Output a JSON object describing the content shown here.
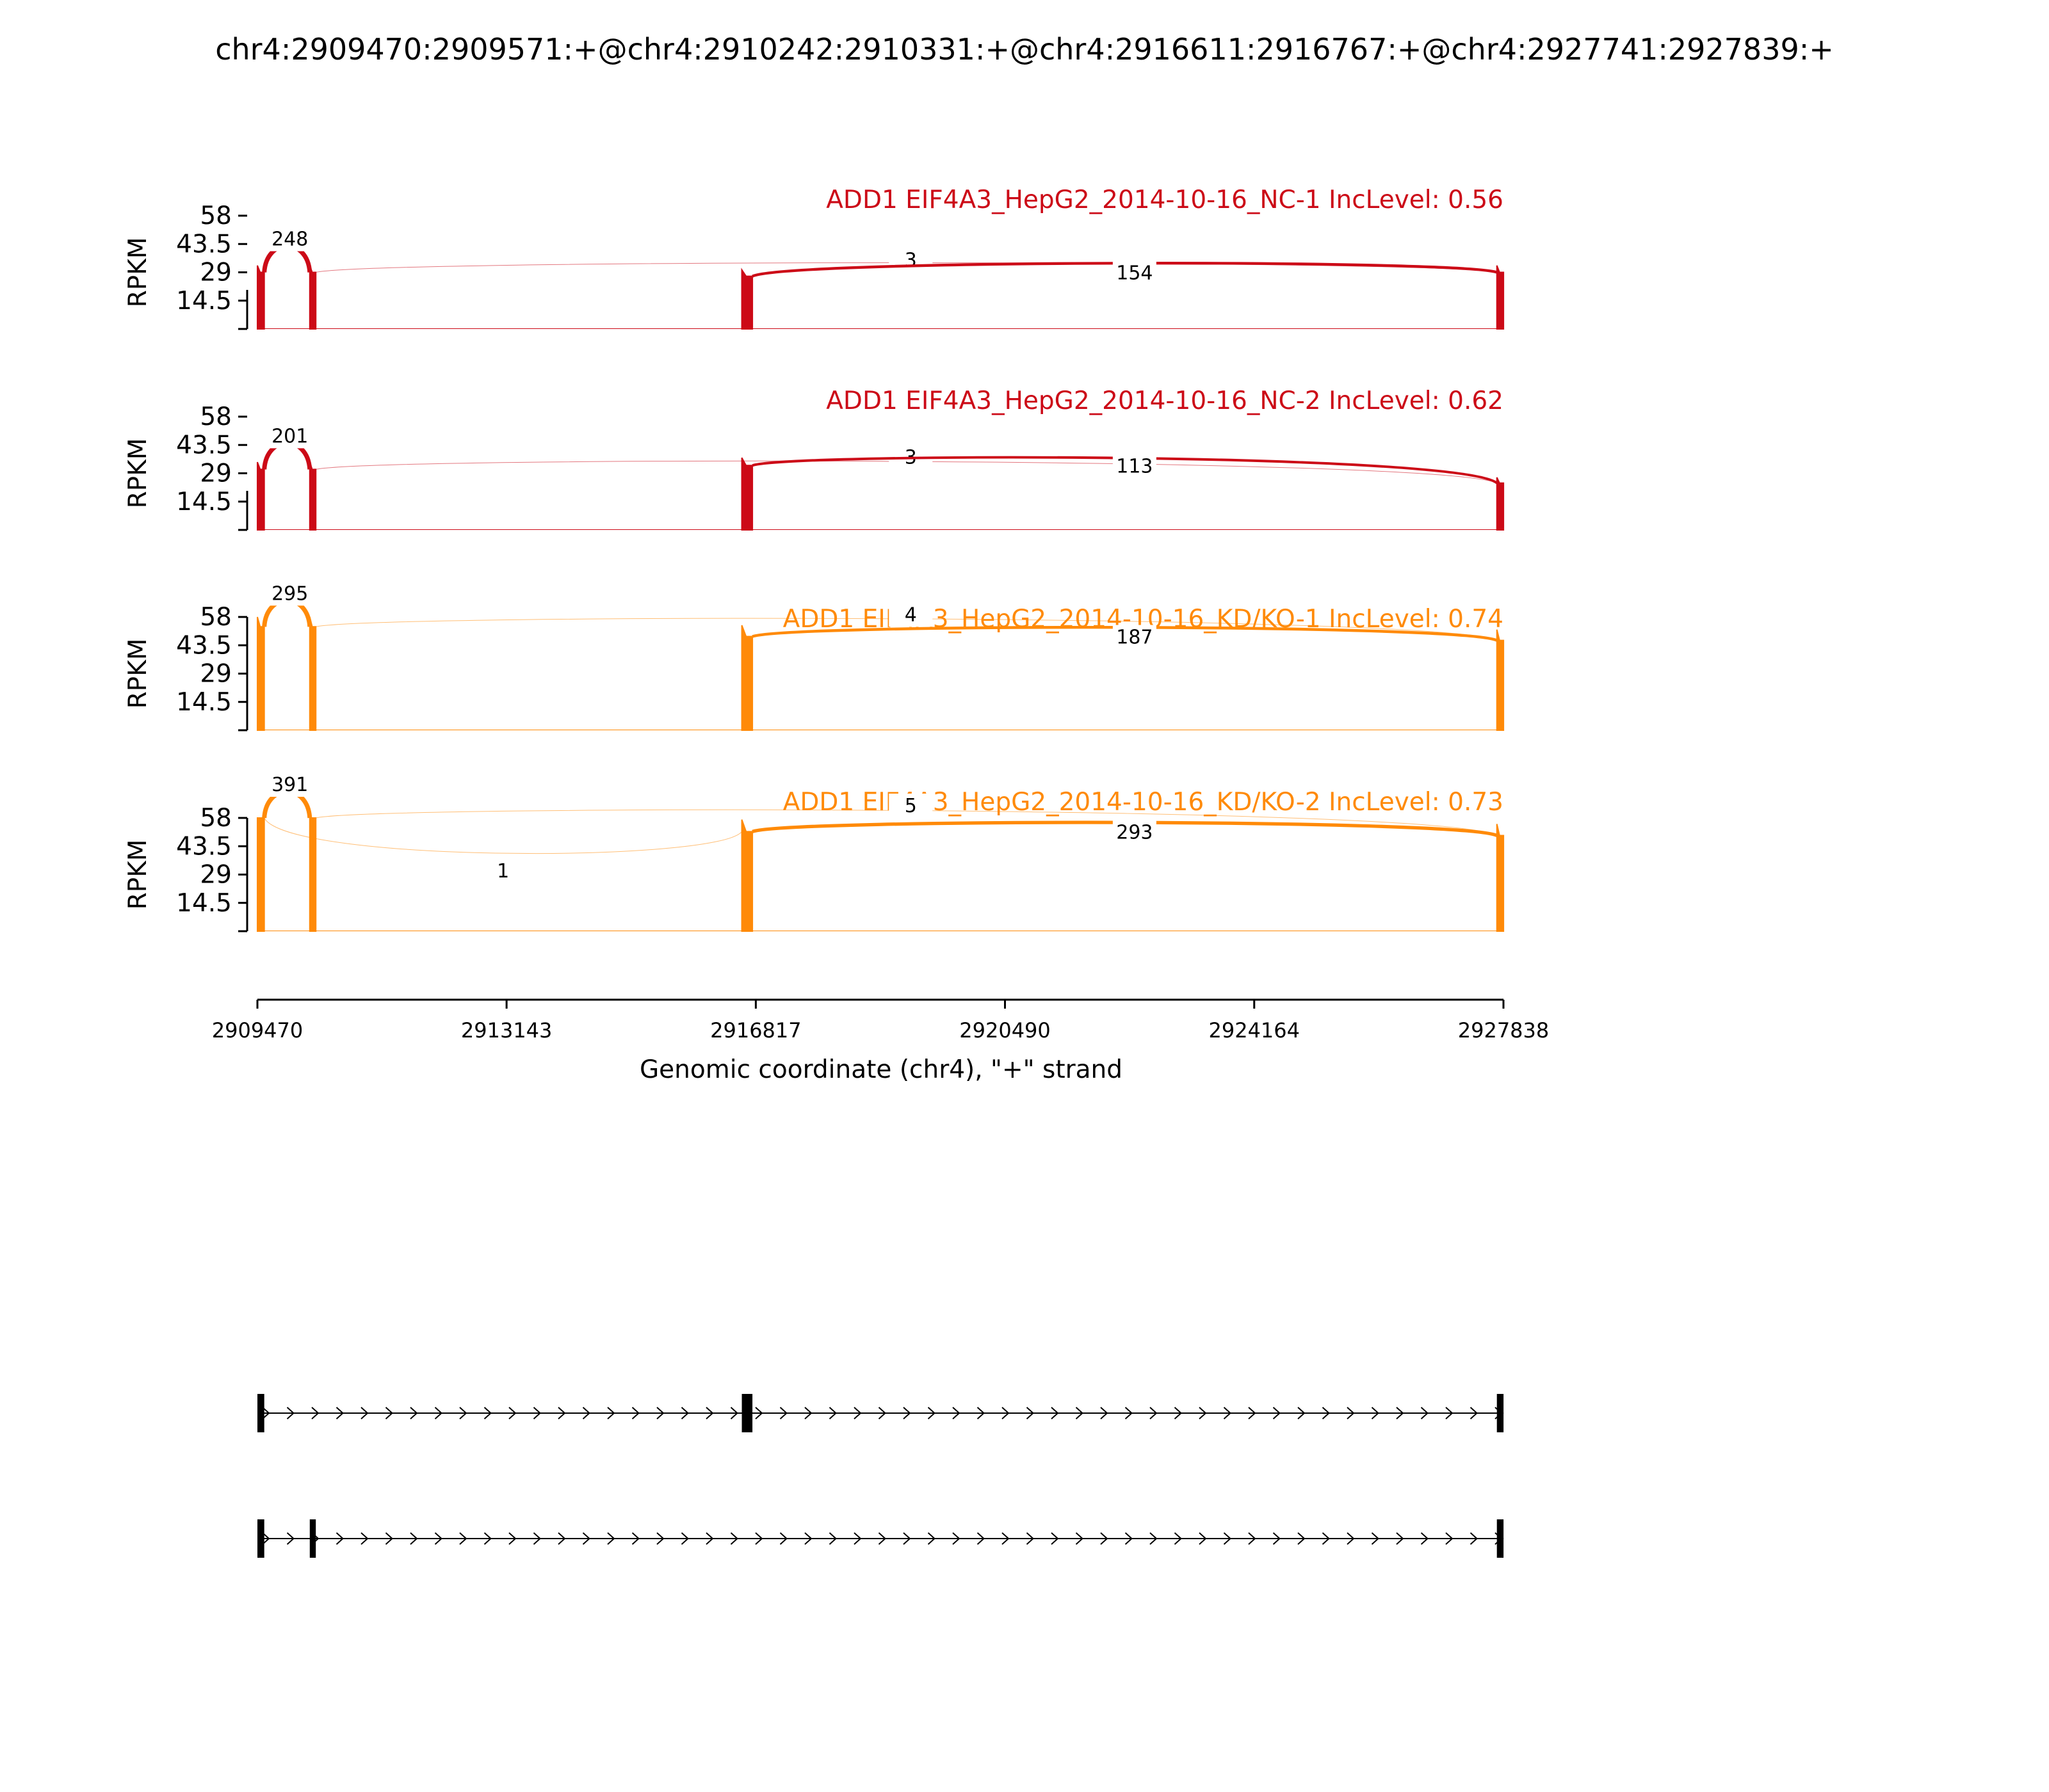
{
  "figure_title": "chr4:2909470:2909571:+@chr4:2910242:2910331:+@chr4:2916611:2916767:+@chr4:2927741:2927839:+",
  "colors": {
    "nc": "#cc0a17",
    "kd": "#ff8a08",
    "axis": "#000000"
  },
  "chart_data": {
    "type": "area",
    "subtype": "sashimi",
    "grid": false,
    "x_range": [
      2909470,
      2927838
    ],
    "x_ticks": [
      "2909470",
      "2913143",
      "2916817",
      "2920490",
      "2924164",
      "2927838"
    ],
    "xlabel": "Genomic coordinate (chr4), \"+\" strand",
    "exons": [
      [
        2909470,
        2909571
      ],
      [
        2910242,
        2910331
      ],
      [
        2916611,
        2916767
      ],
      [
        2927741,
        2927839
      ]
    ],
    "tracks": [
      {
        "title": "ADD1 EIF4A3_HepG2_2014-10-16_NC-1 IncLevel: 0.56",
        "group": "nc",
        "ylabel": "RPKM",
        "yticks": [
          "58",
          "43.5",
          "29",
          "14.5"
        ],
        "ylim": [
          0,
          58
        ],
        "coverage": [
          {
            "exon": 0,
            "level": 29
          },
          {
            "exon": 1,
            "level": 29
          },
          {
            "exon": 2,
            "level": 27
          },
          {
            "exon": 3,
            "level": 29
          }
        ],
        "junctions": [
          {
            "from": 2909571,
            "to": 2910242,
            "count": "248"
          },
          {
            "from": 2910331,
            "to": 2927741,
            "count": "3"
          },
          {
            "from": 2916767,
            "to": 2927741,
            "count": "154"
          }
        ]
      },
      {
        "title": "ADD1 EIF4A3_HepG2_2014-10-16_NC-2 IncLevel: 0.62",
        "group": "nc",
        "ylabel": "RPKM",
        "yticks": [
          "58",
          "43.5",
          "29",
          "14.5"
        ],
        "ylim": [
          0,
          58
        ],
        "coverage": [
          {
            "exon": 0,
            "level": 31
          },
          {
            "exon": 1,
            "level": 31
          },
          {
            "exon": 2,
            "level": 33
          },
          {
            "exon": 3,
            "level": 24
          }
        ],
        "junctions": [
          {
            "from": 2909571,
            "to": 2910242,
            "count": "201"
          },
          {
            "from": 2910331,
            "to": 2927741,
            "count": "3"
          },
          {
            "from": 2916767,
            "to": 2927741,
            "count": "113"
          }
        ]
      },
      {
        "title": "ADD1 EIF4A3_HepG2_2014-10-16_KD/KO-1 IncLevel: 0.74",
        "group": "kd",
        "ylabel": "RPKM",
        "yticks": [
          "58",
          "43.5",
          "29",
          "14.5"
        ],
        "ylim": [
          0,
          58
        ],
        "coverage": [
          {
            "exon": 0,
            "level": 53
          },
          {
            "exon": 1,
            "level": 53
          },
          {
            "exon": 2,
            "level": 48
          },
          {
            "exon": 3,
            "level": 46
          }
        ],
        "junctions": [
          {
            "from": 2909571,
            "to": 2910242,
            "count": "295"
          },
          {
            "from": 2910331,
            "to": 2927741,
            "count": "4"
          },
          {
            "from": 2916767,
            "to": 2927741,
            "count": "187"
          }
        ]
      },
      {
        "title": "ADD1 EIF4A3_HepG2_2014-10-16_KD/KO-2 IncLevel: 0.73",
        "group": "kd",
        "ylabel": "RPKM",
        "yticks": [
          "58",
          "43.5",
          "29",
          "14.5"
        ],
        "ylim": [
          0,
          58
        ],
        "coverage": [
          {
            "exon": 0,
            "level": 58
          },
          {
            "exon": 1,
            "level": 58
          },
          {
            "exon": 2,
            "level": 51
          },
          {
            "exon": 3,
            "level": 49
          }
        ],
        "junctions": [
          {
            "from": 2909571,
            "to": 2910242,
            "count": "391"
          },
          {
            "from": 2909571,
            "to": 2916611,
            "count": "1"
          },
          {
            "from": 2910331,
            "to": 2927741,
            "count": "5"
          },
          {
            "from": 2916767,
            "to": 2927741,
            "count": "293"
          }
        ]
      }
    ],
    "isoforms": [
      {
        "exons": [
          0,
          2,
          3
        ]
      },
      {
        "exons": [
          0,
          1,
          3
        ]
      }
    ]
  }
}
